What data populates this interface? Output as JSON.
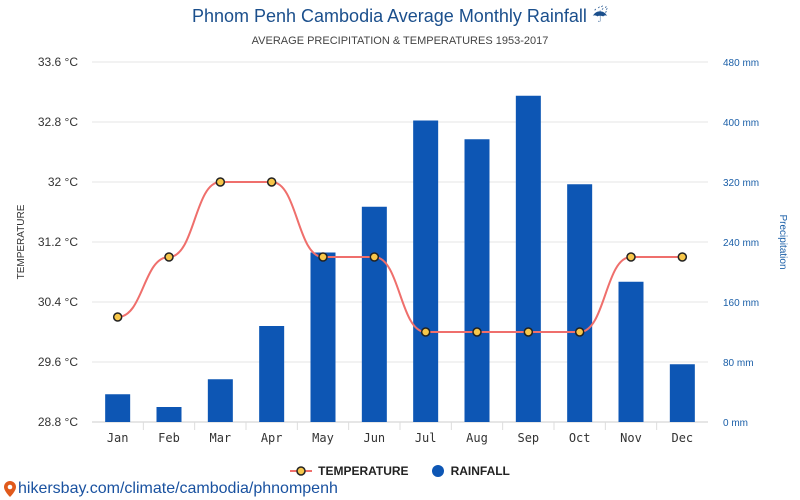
{
  "header": {
    "title": "Phnom Penh Cambodia Average Monthly Rainfall ☔",
    "subtitle": "AVERAGE PRECIPITATION & TEMPERATURES 1953-2017"
  },
  "footer": {
    "source_text": "hikersbay.com/climate/cambodia/phnompenh",
    "source_icon": "map-pin-icon"
  },
  "colors": {
    "rainfall": "#0d56b4",
    "temperature_line": "#ef6f6c",
    "temperature_marker": "#f7c74a",
    "title": "#1b4f8c",
    "right_axis": "#1b5fa8"
  },
  "chart_data": {
    "type": "bar",
    "categories": [
      "Jan",
      "Feb",
      "Mar",
      "Apr",
      "May",
      "Jun",
      "Jul",
      "Aug",
      "Sep",
      "Oct",
      "Nov",
      "Dec"
    ],
    "series": [
      {
        "name": "RAINFALL",
        "type": "bar",
        "axis": "right",
        "unit": "mm",
        "values": [
          37,
          20,
          57,
          128,
          226,
          287,
          402,
          377,
          435,
          317,
          187,
          77
        ]
      },
      {
        "name": "TEMPERATURE",
        "type": "line",
        "axis": "left",
        "unit": "°C",
        "values": [
          30.2,
          31.0,
          32.0,
          32.0,
          31.0,
          31.0,
          30.0,
          30.0,
          30.0,
          30.0,
          31.0,
          31.0
        ]
      }
    ],
    "ylabel_left": "TEMPERATURE",
    "ylabel_right": "Precipitation",
    "ylim_left": [
      28.8,
      33.6
    ],
    "ylim_right": [
      0,
      480
    ],
    "yticks_left": [
      "28.8 °C",
      "29.6 °C",
      "30.4 °C",
      "31.2 °C",
      "32 °C",
      "32.8 °C",
      "33.6 °C"
    ],
    "yticks_right": [
      "0 mm",
      "80 mm",
      "160 mm",
      "240 mm",
      "320 mm",
      "400 mm",
      "480 mm"
    ],
    "grid": true,
    "legend_position": "bottom-center"
  }
}
